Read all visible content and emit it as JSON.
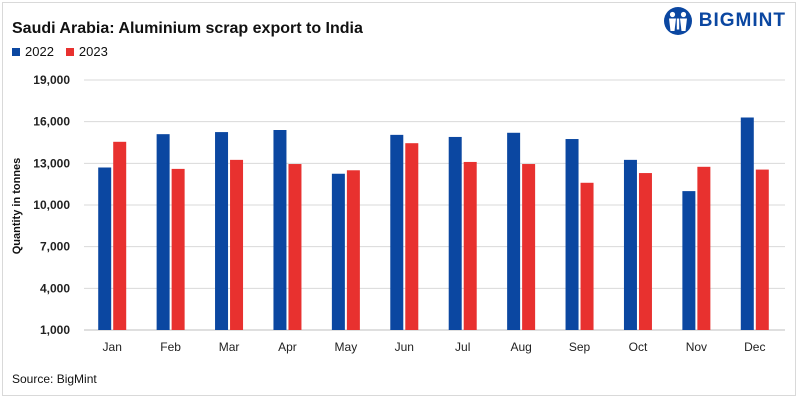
{
  "header": {
    "title": "Saudi Arabia: Aluminium scrap export to India",
    "brand": "BIGMINT"
  },
  "footer": {
    "source": "Source: BigMint"
  },
  "colors": {
    "series_2022": "#0b47a1",
    "series_2023": "#e8312f",
    "brand": "#0b47a1"
  },
  "chart_data": {
    "type": "bar",
    "title": "Saudi Arabia: Aluminium scrap export to India",
    "xlabel": "",
    "ylabel": "Quantity in tonnes",
    "ylim": [
      1000,
      19000
    ],
    "yticks": [
      1000,
      4000,
      7000,
      10000,
      13000,
      16000,
      19000
    ],
    "ytick_labels": [
      "1,000",
      "4,000",
      "7,000",
      "10,000",
      "13,000",
      "16,000",
      "19,000"
    ],
    "grid": "horizontal",
    "legend": "top-left",
    "categories": [
      "Jan",
      "Feb",
      "Mar",
      "Apr",
      "May",
      "Jun",
      "Jul",
      "Aug",
      "Sep",
      "Oct",
      "Nov",
      "Dec"
    ],
    "series": [
      {
        "name": "2022",
        "values": [
          12700,
          15100,
          15250,
          15400,
          12250,
          15050,
          14900,
          15200,
          14750,
          13250,
          11000,
          16300
        ]
      },
      {
        "name": "2023",
        "values": [
          14550,
          12600,
          13250,
          12950,
          12500,
          14450,
          13100,
          12950,
          11600,
          12300,
          12750,
          12550
        ]
      }
    ]
  }
}
